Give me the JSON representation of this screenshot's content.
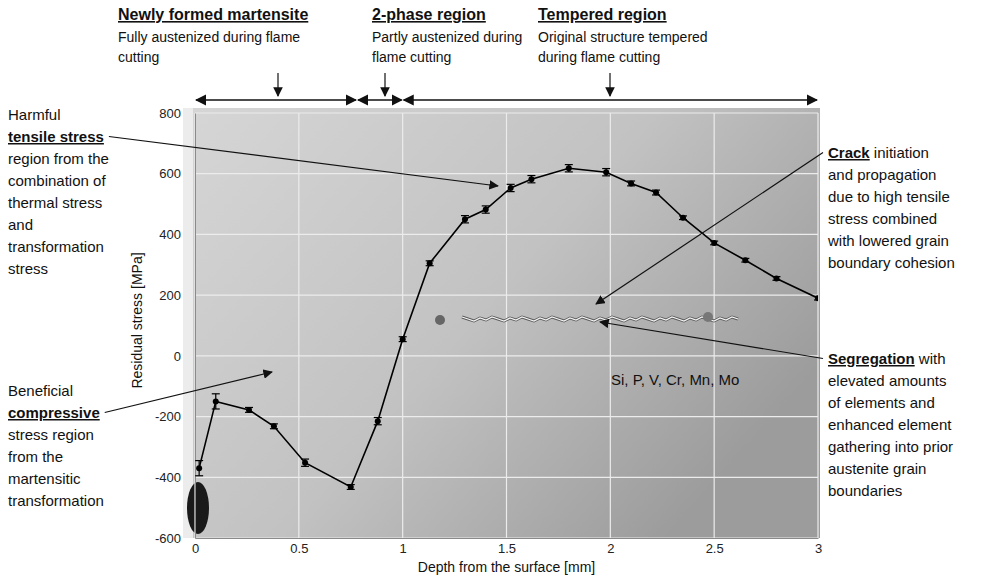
{
  "chart_data": {
    "type": "line",
    "x_label": "Depth from the surface [mm]",
    "y_label": "Residual stress [MPa]",
    "x": [
      0.02,
      0.1,
      0.26,
      0.38,
      0.53,
      0.75,
      0.88,
      1.0,
      1.13,
      1.3,
      1.4,
      1.52,
      1.62,
      1.8,
      1.98,
      2.1,
      2.22,
      2.35,
      2.5,
      2.65,
      2.8,
      3.0
    ],
    "values": [
      -370,
      -150,
      -178,
      -232,
      -352,
      -432,
      -215,
      55,
      305,
      450,
      482,
      553,
      582,
      618,
      605,
      568,
      538,
      455,
      372,
      315,
      255,
      190
    ],
    "errors": [
      25,
      25,
      8,
      8,
      12,
      8,
      12,
      8,
      8,
      12,
      12,
      12,
      12,
      12,
      12,
      8,
      8,
      6,
      6,
      6,
      6,
      6
    ],
    "xlim": [
      0,
      3
    ],
    "ylim": [
      -600,
      800
    ],
    "xticks": [
      0,
      0.5,
      1,
      1.5,
      2,
      2.5,
      3
    ],
    "yticks": [
      -600,
      -400,
      -200,
      0,
      200,
      400,
      600,
      800
    ],
    "grid": true,
    "color": "#000000",
    "marker": "circle",
    "line_style": "solid",
    "regions": [
      {
        "name": "Newly formed martensite",
        "description": [
          "Fully austenized during flame",
          "cutting"
        ],
        "from": 0,
        "to": 0.78
      },
      {
        "name": "2-phase region",
        "description": [
          "Partly austenized during",
          "flame cutting"
        ],
        "from": 0.78,
        "to": 1.0
      },
      {
        "name": "Tempered region",
        "description": [
          "Original structure tempered",
          "during flame cutting"
        ],
        "from": 1.0,
        "to": 3.0
      }
    ],
    "annotations": [
      {
        "lines": [
          "Harmful",
          "tensile stress",
          "region from the",
          "combination of",
          "thermal stress",
          "and",
          "transformation",
          "stress"
        ],
        "emphasis": "tensile stress"
      },
      {
        "lines": [
          "Beneficial",
          "compressive",
          "stress region",
          "from the",
          "martensitic",
          "transformation"
        ],
        "emphasis": "compressive"
      },
      {
        "lines": [
          "Crack initiation",
          "and propagation",
          "due to high tensile",
          "stress combined",
          "with lowered grain",
          "boundary cohesion"
        ],
        "emphasis": "Crack"
      },
      {
        "lines": [
          "Segregation with",
          "elevated amounts",
          "of elements and",
          "enhanced element",
          "gathering into prior",
          "austenite grain",
          "boundaries"
        ],
        "emphasis": "Segregation"
      }
    ],
    "composition_label": "Si, P, V, Cr, Mn, Mo"
  }
}
